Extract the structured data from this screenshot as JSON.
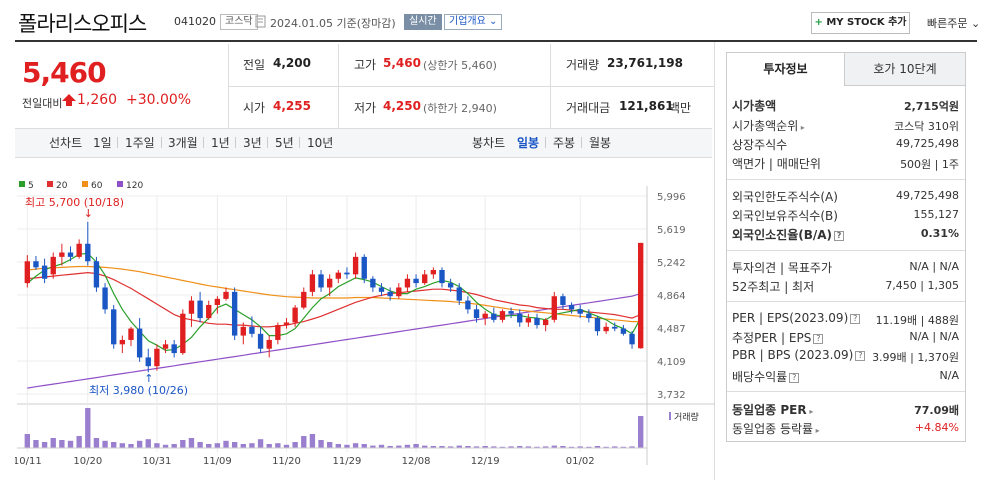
{
  "header": {
    "title": "폴라리스오피스",
    "code": "041020",
    "market": "코스닥",
    "date_text": "2024.01.05  기준(장마감)",
    "realtime": "실시간",
    "corp_info": "기업개요 ⌄",
    "mystock": "MY STOCK 추가",
    "mystock_plus": "+",
    "quick_order": "빠른주문 ⌄"
  },
  "quote": {
    "price": "5,460",
    "change_label": "전일대비",
    "change_amount": "1,260",
    "change_pct": "+30.00%",
    "prev_label": "전일",
    "prev": "4,200",
    "open_label": "시가",
    "open": "4,255",
    "high_label": "고가",
    "high": "5,460",
    "upper_limit": "(상한가 5,460)",
    "low_label": "저가",
    "low": "4,250",
    "lower_limit": "(하한가 2,940)",
    "volume_label": "거래량",
    "volume": "23,761,198",
    "amount_label": "거래대금",
    "amount": "121,861",
    "amount_unit": "백만"
  },
  "toolbar": {
    "line_label": "선차트",
    "periods": [
      "1일",
      "1주일",
      "3개월",
      "1년",
      "3년",
      "5년",
      "10년"
    ],
    "candle_label": "봉차트",
    "candle_types": [
      "일봉",
      "주봉",
      "월봉"
    ],
    "active_candle": "일봉"
  },
  "panel": {
    "tab_active": "투자정보",
    "tab_other": "호가 10단계",
    "rows": [
      {
        "label": "시가총액",
        "value": "2,715억원",
        "bold": true
      },
      {
        "label": "시가총액순위",
        "value": "코스닥 310위",
        "arrow": "▸"
      },
      {
        "label": "상장주식수",
        "value": "49,725,498"
      },
      {
        "label": "액면가 | 매매단위",
        "value": "500원 | 1주"
      },
      {
        "label": "외국인한도주식수(A)",
        "value": "49,725,498"
      },
      {
        "label": "외국인보유주식수(B)",
        "value": "155,127"
      },
      {
        "label": "외국인소진율(B/A)",
        "value": "0.31%",
        "bold": true
      },
      {
        "label": "투자의견 | 목표주가",
        "value": "N/A | N/A"
      },
      {
        "label": "52주최고 | 최저",
        "value": "7,450 | 1,305"
      },
      {
        "label": "PER | EPS(2023.09)",
        "value": "11.19배 | 488원"
      },
      {
        "label": "추정PER | EPS",
        "value": "N/A | N/A"
      },
      {
        "label": "PBR | BPS (2023.09)",
        "value": "3.99배 | 1,370원"
      },
      {
        "label": "배당수익률",
        "value": "N/A"
      },
      {
        "label": "동일업종 PER",
        "value": "77.09배",
        "bold": true
      },
      {
        "label": "동일업종 등락률",
        "value": "+4.84%",
        "red": true
      }
    ],
    "qmark": "?",
    "arrow_small": "▸"
  },
  "colors": {
    "up": "#e02020",
    "down": "#1a56c4",
    "ma5": "#2aa02a",
    "ma20": "#e03030",
    "ma60": "#f0901a",
    "ma120": "#9050c8",
    "volume": "#9b7fcf"
  },
  "chart_data": {
    "type": "candlestick",
    "legend": [
      "5",
      "20",
      "60",
      "120"
    ],
    "yticks": [
      "5,996",
      "5,619",
      "5,242",
      "4,864",
      "4,487",
      "4,109",
      "3,732"
    ],
    "ylim": [
      3732,
      5996
    ],
    "xticks": [
      "10/11",
      "10/20",
      "10/31",
      "11/09",
      "11/20",
      "11/29",
      "12/08",
      "12/19",
      "01/02"
    ],
    "max_label": "최고 5,700 (10/18)",
    "min_label": "최저 3,980 (10/26)",
    "volume_label": "거래량",
    "candles": [
      [
        5000,
        5320,
        4950,
        5250
      ],
      [
        5250,
        5310,
        5150,
        5180
      ],
      [
        5200,
        5280,
        5000,
        5050
      ],
      [
        5100,
        5350,
        5050,
        5300
      ],
      [
        5300,
        5450,
        5200,
        5350
      ],
      [
        5350,
        5420,
        5250,
        5300
      ],
      [
        5300,
        5500,
        5280,
        5450
      ],
      [
        5450,
        5700,
        5200,
        5250
      ],
      [
        5250,
        5300,
        4900,
        4950
      ],
      [
        4950,
        5000,
        4650,
        4700
      ],
      [
        4700,
        4750,
        4250,
        4300
      ],
      [
        4300,
        4400,
        4200,
        4350
      ],
      [
        4350,
        4500,
        4280,
        4480
      ],
      [
        4480,
        4600,
        4100,
        4150
      ],
      [
        4150,
        4250,
        3980,
        4050
      ],
      [
        4050,
        4300,
        4000,
        4250
      ],
      [
        4250,
        4350,
        4200,
        4300
      ],
      [
        4300,
        4350,
        4150,
        4200
      ],
      [
        4200,
        4700,
        4180,
        4650
      ],
      [
        4650,
        4850,
        4500,
        4800
      ],
      [
        4800,
        4900,
        4550,
        4600
      ],
      [
        4600,
        4800,
        4580,
        4750
      ],
      [
        4750,
        4850,
        4650,
        4820
      ],
      [
        4820,
        4950,
        4800,
        4900
      ],
      [
        4900,
        4950,
        4350,
        4400
      ],
      [
        4400,
        4550,
        4300,
        4500
      ],
      [
        4500,
        4620,
        4380,
        4420
      ],
      [
        4420,
        4500,
        4200,
        4250
      ],
      [
        4250,
        4400,
        4150,
        4350
      ],
      [
        4350,
        4550,
        4300,
        4520
      ],
      [
        4520,
        4600,
        4480,
        4550
      ],
      [
        4550,
        4750,
        4500,
        4720
      ],
      [
        4720,
        4950,
        4700,
        4900
      ],
      [
        4900,
        5150,
        4850,
        5100
      ],
      [
        5100,
        5150,
        4900,
        4950
      ],
      [
        4950,
        5100,
        4850,
        5050
      ],
      [
        5050,
        5150,
        5000,
        5120
      ],
      [
        5120,
        5180,
        5050,
        5100
      ],
      [
        5100,
        5350,
        5050,
        5300
      ],
      [
        5300,
        5330,
        5000,
        5050
      ],
      [
        5050,
        5080,
        4900,
        4950
      ],
      [
        4950,
        5000,
        4850,
        4900
      ],
      [
        4900,
        4950,
        4800,
        4850
      ],
      [
        4850,
        5000,
        4820,
        4950
      ],
      [
        4950,
        5100,
        4900,
        5050
      ],
      [
        5050,
        5100,
        4950,
        5000
      ],
      [
        5000,
        5150,
        4980,
        5100
      ],
      [
        5100,
        5180,
        5050,
        5150
      ],
      [
        5150,
        5180,
        4950,
        5000
      ],
      [
        5000,
        5050,
        4900,
        4950
      ],
      [
        4950,
        5000,
        4750,
        4800
      ],
      [
        4800,
        4850,
        4650,
        4700
      ],
      [
        4700,
        4750,
        4550,
        4600
      ],
      [
        4600,
        4680,
        4520,
        4650
      ],
      [
        4650,
        4720,
        4550,
        4580
      ],
      [
        4580,
        4700,
        4550,
        4680
      ],
      [
        4680,
        4720,
        4600,
        4650
      ],
      [
        4650,
        4700,
        4500,
        4550
      ],
      [
        4550,
        4650,
        4500,
        4600
      ],
      [
        4600,
        4650,
        4480,
        4520
      ],
      [
        4520,
        4600,
        4450,
        4580
      ],
      [
        4580,
        4900,
        4550,
        4850
      ],
      [
        4850,
        4880,
        4700,
        4750
      ],
      [
        4750,
        4780,
        4650,
        4700
      ],
      [
        4700,
        4750,
        4600,
        4650
      ],
      [
        4650,
        4700,
        4550,
        4600
      ],
      [
        4600,
        4620,
        4400,
        4450
      ],
      [
        4450,
        4550,
        4420,
        4500
      ],
      [
        4500,
        4550,
        4450,
        4480
      ],
      [
        4480,
        4520,
        4400,
        4420
      ],
      [
        4420,
        4450,
        4250,
        4300
      ],
      [
        4255,
        5460,
        4250,
        5460
      ]
    ],
    "volumes": [
      0.35,
      0.2,
      0.15,
      0.25,
      0.2,
      0.18,
      0.3,
      1.0,
      0.25,
      0.18,
      0.15,
      0.12,
      0.1,
      0.18,
      0.22,
      0.12,
      0.08,
      0.1,
      0.2,
      0.25,
      0.15,
      0.1,
      0.12,
      0.18,
      0.15,
      0.1,
      0.12,
      0.22,
      0.1,
      0.12,
      0.08,
      0.15,
      0.3,
      0.35,
      0.2,
      0.15,
      0.1,
      0.08,
      0.12,
      0.1,
      0.06,
      0.08,
      0.05,
      0.06,
      0.08,
      0.1,
      0.06,
      0.05,
      0.05,
      0.04,
      0.06,
      0.05,
      0.04,
      0.05,
      0.04,
      0.03,
      0.04,
      0.05,
      0.04,
      0.03,
      0.04,
      0.06,
      0.05,
      0.03,
      0.04,
      0.03,
      0.05,
      0.03,
      0.04,
      0.03,
      0.04,
      0.8
    ],
    "ma5": [
      5000,
      5080,
      5150,
      5190,
      5220,
      5270,
      5330,
      5340,
      5240,
      5090,
      4880,
      4700,
      4560,
      4450,
      4340,
      4290,
      4230,
      4240,
      4300,
      4380,
      4500,
      4600,
      4720,
      4760,
      4700,
      4640,
      4580,
      4500,
      4400,
      4400,
      4420,
      4480,
      4600,
      4720,
      4820,
      4880,
      4960,
      5010,
      5060,
      5040,
      5010,
      4960,
      4910,
      4880,
      4880,
      4930,
      4960,
      5000,
      5030,
      5010,
      4960,
      4880,
      4780,
      4700,
      4640,
      4620,
      4630,
      4630,
      4610,
      4600,
      4580,
      4640,
      4660,
      4680,
      4700,
      4660,
      4620,
      4580,
      4520,
      4480,
      4420,
      4600
    ],
    "ma20": [
      5050,
      5060,
      5070,
      5080,
      5090,
      5100,
      5110,
      5120,
      5110,
      5080,
      5040,
      4990,
      4940,
      4880,
      4820,
      4760,
      4700,
      4640,
      4600,
      4580,
      4560,
      4540,
      4530,
      4530,
      4520,
      4520,
      4510,
      4500,
      4500,
      4510,
      4520,
      4540,
      4560,
      4590,
      4620,
      4660,
      4700,
      4740,
      4780,
      4810,
      4840,
      4860,
      4880,
      4890,
      4900,
      4910,
      4920,
      4930,
      4930,
      4920,
      4910,
      4890,
      4870,
      4840,
      4810,
      4790,
      4770,
      4750,
      4740,
      4720,
      4710,
      4700,
      4700,
      4690,
      4680,
      4670,
      4660,
      4650,
      4640,
      4620,
      4600,
      4640
    ],
    "ma60": [
      5150,
      5160,
      5170,
      5175,
      5180,
      5185,
      5190,
      5190,
      5185,
      5180,
      5170,
      5160,
      5145,
      5130,
      5110,
      5090,
      5070,
      5050,
      5030,
      5010,
      4990,
      4970,
      4955,
      4940,
      4925,
      4910,
      4895,
      4880,
      4865,
      4855,
      4845,
      4840,
      4835,
      4830,
      4830,
      4830,
      4830,
      4830,
      4835,
      4835,
      4835,
      4830,
      4825,
      4820,
      4815,
      4810,
      4805,
      4800,
      4795,
      4790,
      4780,
      4770,
      4760,
      4745,
      4730,
      4715,
      4700,
      4690,
      4680,
      4670,
      4660,
      4650,
      4640,
      4630,
      4620,
      4610,
      4600,
      4590,
      4580,
      4570,
      4560,
      4560
    ],
    "ma120": [
      3800,
      3815,
      3830,
      3845,
      3860,
      3875,
      3890,
      3905,
      3920,
      3935,
      3950,
      3965,
      3980,
      3995,
      4010,
      4025,
      4040,
      4055,
      4070,
      4085,
      4100,
      4115,
      4130,
      4145,
      4160,
      4175,
      4190,
      4205,
      4220,
      4235,
      4250,
      4265,
      4280,
      4295,
      4310,
      4325,
      4340,
      4355,
      4370,
      4385,
      4400,
      4415,
      4430,
      4445,
      4460,
      4475,
      4490,
      4505,
      4520,
      4535,
      4550,
      4565,
      4580,
      4595,
      4610,
      4625,
      4640,
      4655,
      4670,
      4685,
      4700,
      4715,
      4730,
      4745,
      4760,
      4775,
      4790,
      4805,
      4820,
      4835,
      4850,
      4880
    ]
  }
}
